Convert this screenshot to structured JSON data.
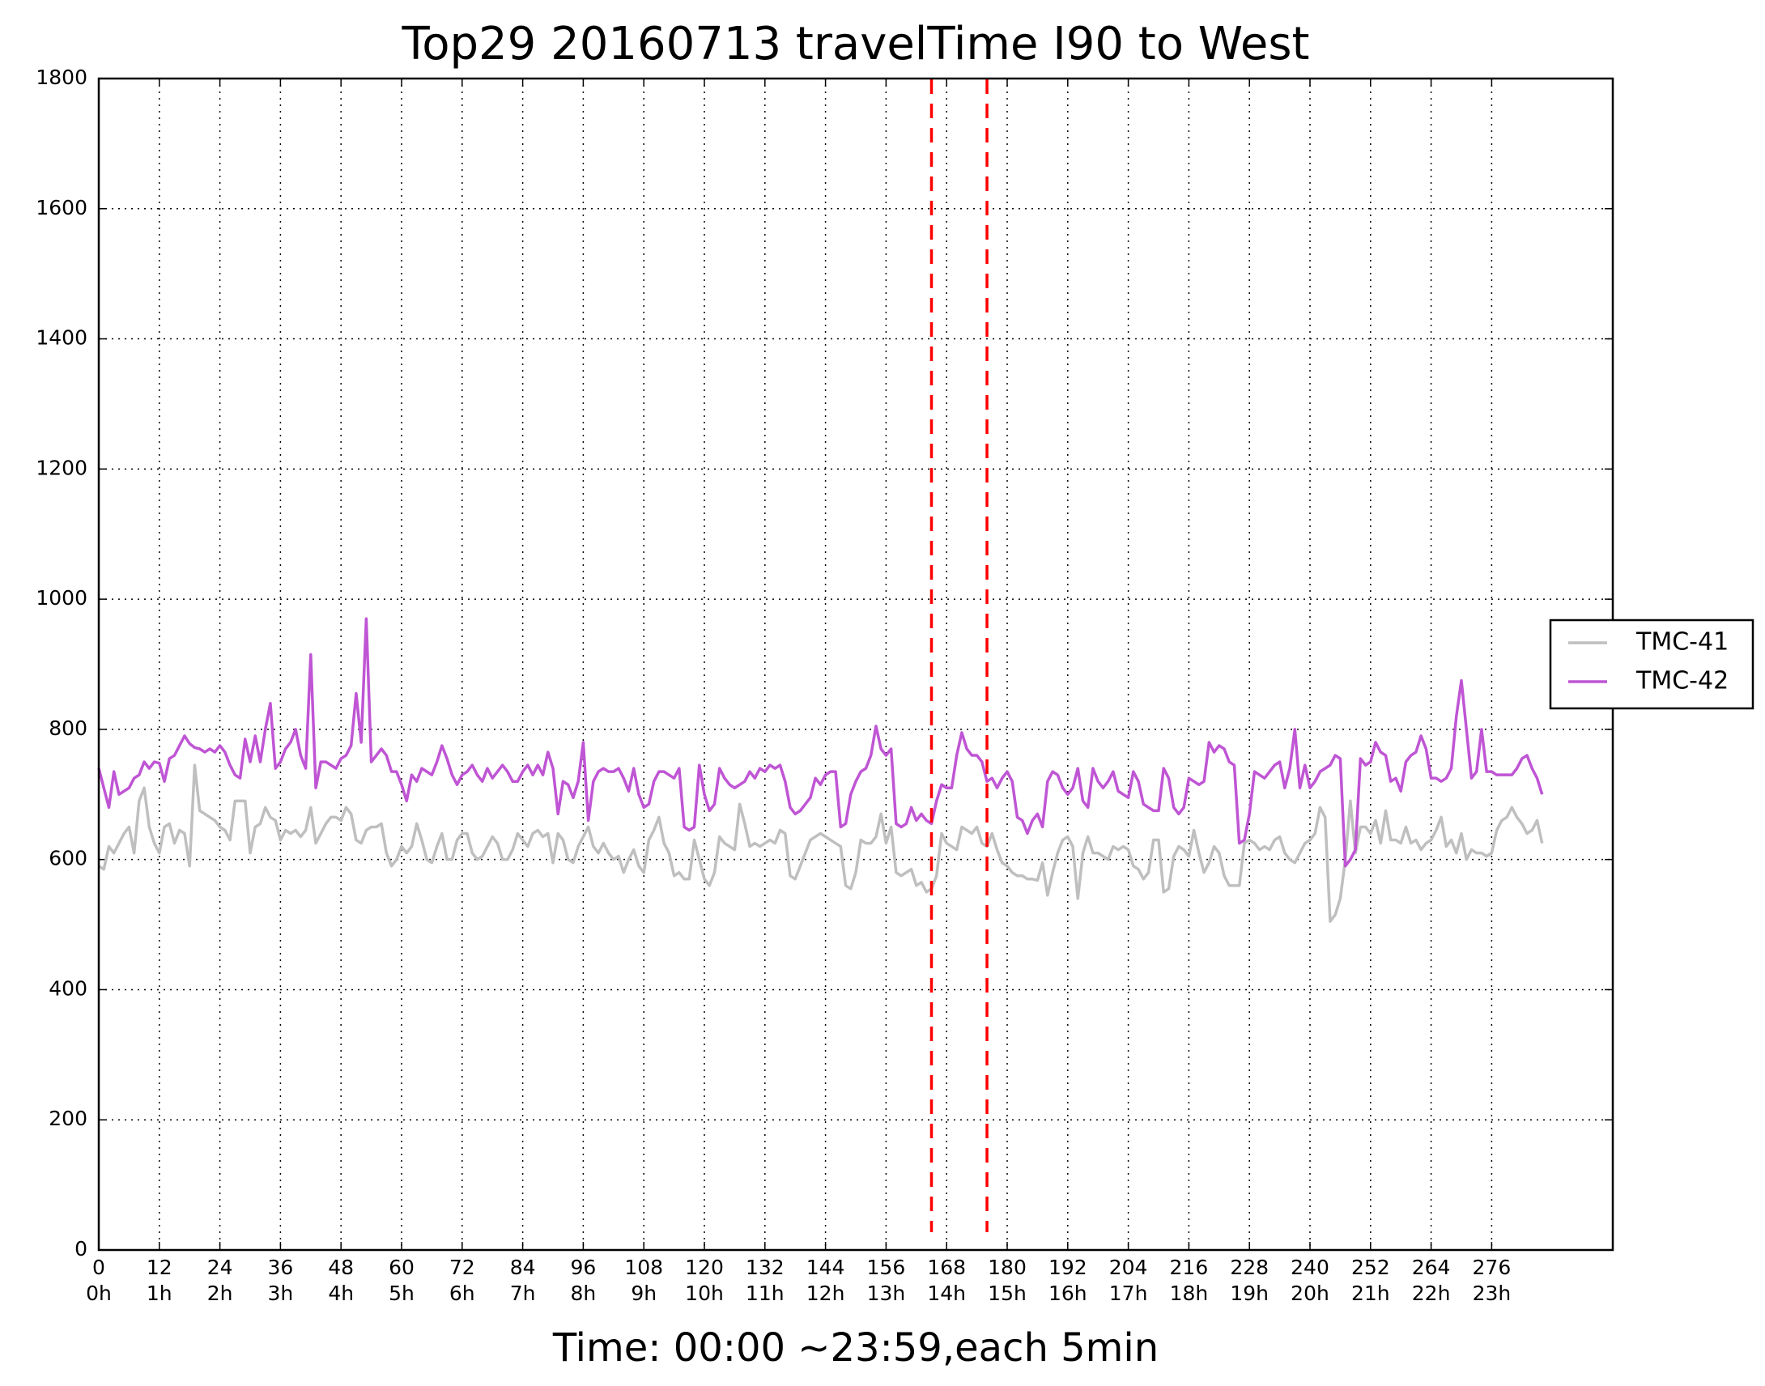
{
  "chart_data": {
    "type": "line",
    "title": "Top29 20160713 travelTime I90 to West",
    "xlabel": "Time: 00:00 ~23:59,each 5min",
    "xlim": [
      0,
      300
    ],
    "ylim": [
      0,
      1800
    ],
    "yticks": [
      0,
      200,
      400,
      600,
      800,
      1000,
      1200,
      1400,
      1600,
      1800
    ],
    "xticks": [
      {
        "value": 0,
        "label": "0\n0h"
      },
      {
        "value": 12,
        "label": "12\n1h"
      },
      {
        "value": 24,
        "label": "24\n2h"
      },
      {
        "value": 36,
        "label": "36\n3h"
      },
      {
        "value": 48,
        "label": "48\n4h"
      },
      {
        "value": 60,
        "label": "60\n5h"
      },
      {
        "value": 72,
        "label": "72\n6h"
      },
      {
        "value": 84,
        "label": "84\n7h"
      },
      {
        "value": 96,
        "label": "96\n8h"
      },
      {
        "value": 108,
        "label": "108\n9h"
      },
      {
        "value": 120,
        "label": "120\n10h"
      },
      {
        "value": 132,
        "label": "132\n11h"
      },
      {
        "value": 144,
        "label": "144\n12h"
      },
      {
        "value": 156,
        "label": "156\n13h"
      },
      {
        "value": 168,
        "label": "168\n14h"
      },
      {
        "value": 180,
        "label": "180\n15h"
      },
      {
        "value": 192,
        "label": "192\n16h"
      },
      {
        "value": 204,
        "label": "204\n17h"
      },
      {
        "value": 216,
        "label": "216\n18h"
      },
      {
        "value": 228,
        "label": "228\n19h"
      },
      {
        "value": 240,
        "label": "240\n20h"
      },
      {
        "value": 252,
        "label": "252\n21h"
      },
      {
        "value": 264,
        "label": "264\n22h"
      },
      {
        "value": 276,
        "label": "276\n23h"
      }
    ],
    "grid": true,
    "legend": "right",
    "vlines": [
      165,
      176
    ],
    "vline_color": "#ff0000",
    "series": [
      {
        "name": "TMC-41",
        "color": "#bfbfbf",
        "values": [
          590,
          585,
          620,
          610,
          625,
          640,
          650,
          610,
          690,
          710,
          650,
          625,
          610,
          650,
          655,
          625,
          645,
          640,
          590,
          745,
          675,
          670,
          665,
          660,
          650,
          645,
          630,
          690,
          690,
          690,
          610,
          650,
          655,
          680,
          665,
          660,
          630,
          645,
          640,
          645,
          635,
          645,
          680,
          625,
          640,
          655,
          665,
          665,
          660,
          680,
          670,
          630,
          625,
          645,
          650,
          650,
          655,
          610,
          590,
          600,
          620,
          610,
          620,
          655,
          630,
          600,
          595,
          620,
          640,
          600,
          600,
          630,
          640,
          640,
          610,
          600,
          605,
          620,
          635,
          625,
          600,
          600,
          615,
          640,
          630,
          620,
          640,
          645,
          635,
          640,
          595,
          640,
          630,
          600,
          595,
          620,
          635,
          650,
          620,
          610,
          625,
          610,
          600,
          605,
          580,
          600,
          615,
          590,
          580,
          630,
          645,
          665,
          625,
          610,
          575,
          580,
          570,
          570,
          630,
          600,
          570,
          560,
          580,
          635,
          625,
          620,
          615,
          685,
          655,
          620,
          625,
          620,
          625,
          630,
          625,
          645,
          640,
          575,
          570,
          590,
          610,
          630,
          635,
          640,
          635,
          630,
          625,
          620,
          560,
          555,
          580,
          630,
          625,
          625,
          635,
          670,
          625,
          650,
          580,
          575,
          580,
          585,
          560,
          565,
          550,
          555,
          575,
          640,
          625,
          620,
          615,
          650,
          645,
          640,
          650,
          625,
          620,
          640,
          615,
          595,
          590,
          580,
          575,
          575,
          570,
          570,
          568,
          595,
          545,
          580,
          610,
          630,
          635,
          620,
          540,
          610,
          635,
          610,
          610,
          605,
          600,
          620,
          615,
          620,
          615,
          590,
          585,
          570,
          580,
          630,
          630,
          550,
          555,
          605,
          620,
          615,
          605,
          645,
          610,
          580,
          595,
          620,
          610,
          575,
          560,
          560,
          560,
          625,
          630,
          625,
          615,
          620,
          615,
          630,
          635,
          610,
          600,
          595,
          610,
          625,
          630,
          640,
          680,
          665,
          505,
          515,
          540,
          600,
          690,
          610,
          650,
          650,
          640,
          660,
          625,
          675,
          630,
          630,
          625,
          650,
          625,
          630,
          615,
          625,
          630,
          645,
          665,
          620,
          630,
          610,
          640,
          600,
          615,
          610,
          610,
          605,
          610,
          645,
          660,
          665,
          680,
          665,
          655,
          640,
          645,
          660,
          625
        ]
      },
      {
        "name": "TMC-42",
        "color": "#bf55d4",
        "values": [
          740,
          710,
          680,
          735,
          700,
          705,
          710,
          725,
          730,
          750,
          740,
          750,
          748,
          720,
          755,
          760,
          775,
          790,
          778,
          772,
          770,
          765,
          770,
          765,
          775,
          765,
          745,
          730,
          725,
          785,
          750,
          790,
          750,
          800,
          840,
          740,
          750,
          770,
          780,
          800,
          760,
          740,
          915,
          710,
          750,
          750,
          745,
          740,
          755,
          760,
          775,
          855,
          780,
          970,
          750,
          760,
          770,
          760,
          735,
          735,
          715,
          690,
          730,
          720,
          740,
          735,
          730,
          750,
          775,
          755,
          730,
          715,
          730,
          735,
          745,
          730,
          720,
          740,
          725,
          735,
          745,
          735,
          720,
          720,
          735,
          745,
          730,
          745,
          730,
          765,
          740,
          670,
          720,
          715,
          695,
          720,
          780,
          660,
          720,
          735,
          740,
          735,
          735,
          740,
          725,
          705,
          740,
          700,
          680,
          685,
          720,
          735,
          735,
          730,
          725,
          740,
          650,
          645,
          650,
          745,
          700,
          675,
          685,
          740,
          725,
          715,
          710,
          715,
          720,
          735,
          725,
          740,
          735,
          745,
          740,
          745,
          720,
          680,
          670,
          675,
          685,
          695,
          725,
          715,
          730,
          735,
          735,
          650,
          655,
          700,
          720,
          735,
          740,
          760,
          805,
          770,
          760,
          770,
          655,
          650,
          655,
          680,
          660,
          670,
          660,
          655,
          690,
          715,
          710,
          710,
          760,
          795,
          770,
          760,
          760,
          750,
          720,
          725,
          710,
          725,
          735,
          720,
          665,
          660,
          640,
          660,
          670,
          650,
          720,
          735,
          730,
          710,
          700,
          710,
          740,
          690,
          680,
          740,
          720,
          710,
          720,
          735,
          705,
          700,
          695,
          735,
          720,
          685,
          680,
          675,
          675,
          740,
          725,
          680,
          670,
          680,
          725,
          720,
          715,
          720,
          780,
          765,
          775,
          770,
          750,
          745,
          625,
          630,
          670,
          735,
          730,
          725,
          735,
          745,
          750,
          710,
          740,
          800,
          710,
          745,
          710,
          720,
          735,
          740,
          745,
          760,
          755,
          590,
          600,
          615,
          755,
          745,
          750,
          780,
          765,
          760,
          720,
          725,
          705,
          750,
          760,
          765,
          790,
          770,
          725,
          725,
          720,
          725,
          740,
          820,
          875,
          800,
          725,
          735,
          800,
          735,
          735,
          730,
          730,
          730,
          730,
          740,
          755,
          760,
          740,
          725,
          700
        ]
      }
    ]
  }
}
